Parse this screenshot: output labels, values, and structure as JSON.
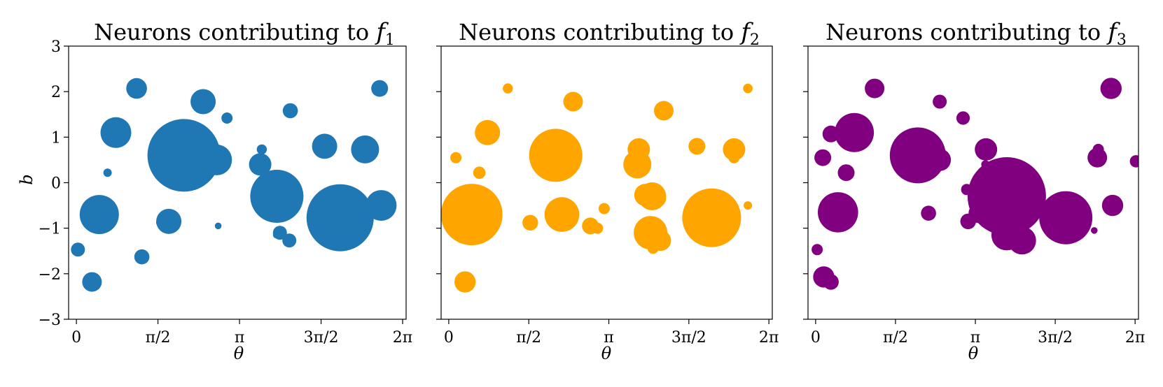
{
  "chart_data": [
    {
      "type": "scatter",
      "title": "Neurons contributing to f1",
      "title_text": "Neurons contributing to ",
      "title_math_base": "f",
      "title_math_sub": "1",
      "xlabel": "θ",
      "ylabel": "b",
      "xlim": [
        -0.15,
        6.35
      ],
      "ylim": [
        -3,
        3
      ],
      "xtick_labels": [
        "0",
        "π/2",
        "π",
        "3π/2",
        "2π"
      ],
      "xtick_values": [
        0,
        1.5708,
        3.1416,
        4.7124,
        6.2832
      ],
      "ytick_labels": [
        "−3",
        "−2",
        "−1",
        "0",
        "1",
        "2",
        "3"
      ],
      "ytick_values": [
        -3,
        -2,
        -1,
        0,
        1,
        2,
        3
      ],
      "color": "#1f77b4",
      "grid": false,
      "points": [
        {
          "x": 0.03,
          "y": -1.47,
          "size": 0.25
        },
        {
          "x": 0.3,
          "y": -2.18,
          "size": 0.35
        },
        {
          "x": 0.44,
          "y": -0.7,
          "size": 0.7
        },
        {
          "x": 0.6,
          "y": 0.22,
          "size": 0.15
        },
        {
          "x": 0.76,
          "y": 1.1,
          "size": 0.55
        },
        {
          "x": 1.16,
          "y": 2.07,
          "size": 0.37
        },
        {
          "x": 1.26,
          "y": -1.63,
          "size": 0.27
        },
        {
          "x": 1.6,
          "y": -0.88,
          "size": 0.12
        },
        {
          "x": 1.78,
          "y": -0.85,
          "size": 0.45
        },
        {
          "x": 2.07,
          "y": 0.6,
          "size": 1.3
        },
        {
          "x": 2.44,
          "y": 1.78,
          "size": 0.45
        },
        {
          "x": 2.7,
          "y": 0.5,
          "size": 0.55
        },
        {
          "x": 2.73,
          "y": -0.95,
          "size": 0.12
        },
        {
          "x": 2.9,
          "y": 1.42,
          "size": 0.2
        },
        {
          "x": 3.57,
          "y": 0.73,
          "size": 0.18
        },
        {
          "x": 3.54,
          "y": 0.4,
          "size": 0.4
        },
        {
          "x": 3.86,
          "y": -0.3,
          "size": 0.95
        },
        {
          "x": 3.85,
          "y": -1.15,
          "size": 0.12
        },
        {
          "x": 3.92,
          "y": -1.1,
          "size": 0.25
        },
        {
          "x": 4.12,
          "y": 1.58,
          "size": 0.27
        },
        {
          "x": 4.1,
          "y": -1.27,
          "size": 0.25
        },
        {
          "x": 4.78,
          "y": 0.8,
          "size": 0.45
        },
        {
          "x": 5.08,
          "y": -0.77,
          "size": 1.2
        },
        {
          "x": 5.56,
          "y": 0.73,
          "size": 0.5
        },
        {
          "x": 5.84,
          "y": 2.07,
          "size": 0.3
        },
        {
          "x": 5.87,
          "y": -0.5,
          "size": 0.55
        }
      ]
    },
    {
      "type": "scatter",
      "title": "Neurons contributing to f2",
      "title_text": "Neurons contributing to ",
      "title_math_base": "f",
      "title_math_sub": "2",
      "xlabel": "θ",
      "ylabel": "",
      "xlim": [
        -0.15,
        6.35
      ],
      "ylim": [
        -3,
        3
      ],
      "xtick_labels": [
        "0",
        "π/2",
        "π",
        "3π/2",
        "2π"
      ],
      "xtick_values": [
        0,
        1.5708,
        3.1416,
        4.7124,
        6.2832
      ],
      "ytick_labels": [],
      "ytick_values": [
        -3,
        -2,
        -1,
        0,
        1,
        2,
        3
      ],
      "color": "#ffa500",
      "grid": false,
      "points": [
        {
          "x": 0.14,
          "y": 0.55,
          "size": 0.2
        },
        {
          "x": 0.32,
          "y": -2.18,
          "size": 0.38
        },
        {
          "x": 0.45,
          "y": -0.7,
          "size": 1.1
        },
        {
          "x": 0.6,
          "y": 0.22,
          "size": 0.22
        },
        {
          "x": 0.76,
          "y": 1.1,
          "size": 0.45
        },
        {
          "x": 1.16,
          "y": 2.07,
          "size": 0.18
        },
        {
          "x": 1.6,
          "y": -0.88,
          "size": 0.28
        },
        {
          "x": 2.1,
          "y": 0.6,
          "size": 0.95
        },
        {
          "x": 2.22,
          "y": -0.7,
          "size": 0.62
        },
        {
          "x": 2.44,
          "y": 0.5,
          "size": 0.15
        },
        {
          "x": 2.44,
          "y": 1.78,
          "size": 0.35
        },
        {
          "x": 2.78,
          "y": -0.95,
          "size": 0.3
        },
        {
          "x": 2.92,
          "y": -1.0,
          "size": 0.2
        },
        {
          "x": 3.05,
          "y": -0.57,
          "size": 0.2
        },
        {
          "x": 3.73,
          "y": 0.73,
          "size": 0.4
        },
        {
          "x": 3.7,
          "y": 0.4,
          "size": 0.5
        },
        {
          "x": 3.86,
          "y": -0.27,
          "size": 0.4
        },
        {
          "x": 3.99,
          "y": -0.3,
          "size": 0.5
        },
        {
          "x": 4.1,
          "y": -0.35,
          "size": 0.3
        },
        {
          "x": 3.96,
          "y": -1.1,
          "size": 0.6
        },
        {
          "x": 4.01,
          "y": -1.44,
          "size": 0.2
        },
        {
          "x": 4.16,
          "y": -1.27,
          "size": 0.37
        },
        {
          "x": 4.22,
          "y": 1.58,
          "size": 0.35
        },
        {
          "x": 4.87,
          "y": 0.8,
          "size": 0.3
        },
        {
          "x": 5.16,
          "y": -0.77,
          "size": 1.05
        },
        {
          "x": 5.6,
          "y": 0.73,
          "size": 0.4
        },
        {
          "x": 5.6,
          "y": 0.55,
          "size": 0.2
        },
        {
          "x": 5.87,
          "y": 2.07,
          "size": 0.17
        },
        {
          "x": 5.87,
          "y": -0.5,
          "size": 0.15
        }
      ]
    },
    {
      "type": "scatter",
      "title": "Neurons contributing to f3",
      "title_text": "Neurons contributing to ",
      "title_math_base": "f",
      "title_math_sub": "3",
      "xlabel": "θ",
      "ylabel": "",
      "xlim": [
        -0.15,
        6.35
      ],
      "ylim": [
        -3,
        3
      ],
      "xtick_labels": [
        "0",
        "π/2",
        "π",
        "3π/2",
        "2π"
      ],
      "xtick_values": [
        0,
        1.5708,
        3.1416,
        4.7124,
        6.2832
      ],
      "ytick_labels": [],
      "ytick_values": [
        -3,
        -2,
        -1,
        0,
        1,
        2,
        3
      ],
      "color": "#800080",
      "grid": false,
      "points": [
        {
          "x": 0.03,
          "y": -1.47,
          "size": 0.2
        },
        {
          "x": 0.14,
          "y": 0.55,
          "size": 0.3
        },
        {
          "x": 0.16,
          "y": -2.07,
          "size": 0.38
        },
        {
          "x": 0.3,
          "y": -2.18,
          "size": 0.28
        },
        {
          "x": 0.3,
          "y": 1.07,
          "size": 0.3
        },
        {
          "x": 0.44,
          "y": -0.65,
          "size": 0.72
        },
        {
          "x": 0.6,
          "y": 0.22,
          "size": 0.3
        },
        {
          "x": 0.76,
          "y": 1.1,
          "size": 0.7
        },
        {
          "x": 1.16,
          "y": 2.07,
          "size": 0.35
        },
        {
          "x": 2.01,
          "y": 0.6,
          "size": 1.0
        },
        {
          "x": 2.22,
          "y": -0.67,
          "size": 0.27
        },
        {
          "x": 2.44,
          "y": 0.5,
          "size": 0.4
        },
        {
          "x": 2.44,
          "y": 1.78,
          "size": 0.25
        },
        {
          "x": 2.9,
          "y": 1.42,
          "size": 0.24
        },
        {
          "x": 2.97,
          "y": -0.15,
          "size": 0.2
        },
        {
          "x": 3.0,
          "y": -0.85,
          "size": 0.28
        },
        {
          "x": 3.2,
          "y": -0.67,
          "size": 0.35
        },
        {
          "x": 3.35,
          "y": 0.73,
          "size": 0.4
        },
        {
          "x": 3.34,
          "y": 0.4,
          "size": 0.15
        },
        {
          "x": 3.76,
          "y": -0.3,
          "size": 1.4
        },
        {
          "x": 3.76,
          "y": -1.15,
          "size": 0.55
        },
        {
          "x": 4.06,
          "y": -1.27,
          "size": 0.5
        },
        {
          "x": 4.92,
          "y": -0.77,
          "size": 0.95
        },
        {
          "x": 5.48,
          "y": -1.05,
          "size": 0.12
        },
        {
          "x": 5.56,
          "y": 0.73,
          "size": 0.2
        },
        {
          "x": 5.54,
          "y": 0.55,
          "size": 0.35
        },
        {
          "x": 5.81,
          "y": 2.07,
          "size": 0.38
        },
        {
          "x": 5.84,
          "y": -0.5,
          "size": 0.38
        },
        {
          "x": 6.3,
          "y": 0.47,
          "size": 0.22
        }
      ]
    }
  ]
}
